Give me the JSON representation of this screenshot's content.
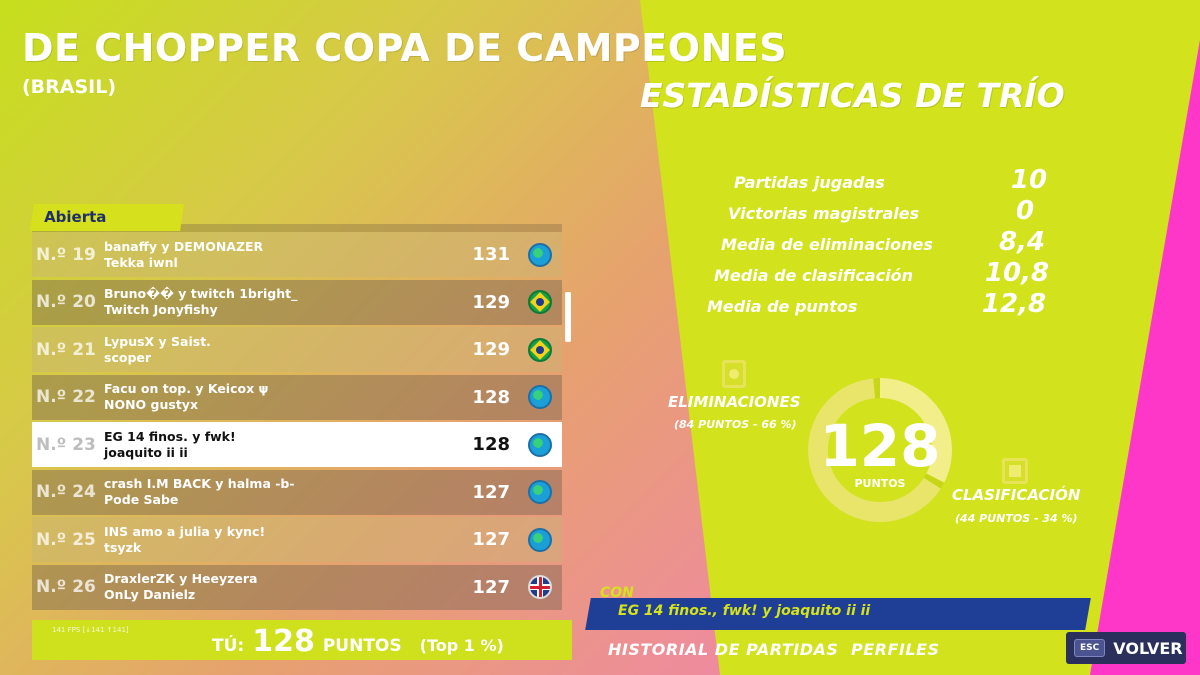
{
  "header": {
    "title": "DE CHOPPER COPA DE CAMPEONES",
    "subtitle": "(BRASIL)",
    "stats_title": "ESTADÍSTICAS DE TRÍO"
  },
  "leaderboard": {
    "tab_label": "Abierta",
    "rows": [
      {
        "rank": "N.º 19",
        "line1": "banaffy y DEMONAZER",
        "line2": "Tekka iwnl",
        "score": "131",
        "flag": "globe-icon"
      },
      {
        "rank": "N.º 20",
        "line1": "Bruno�� y twitch 1bright_",
        "line2": "Twitch Jonyfishy",
        "score": "129",
        "flag": "brazil-flag-icon"
      },
      {
        "rank": "N.º 21",
        "line1": "LypusX y Saist.",
        "line2": "scoper",
        "score": "129",
        "flag": "brazil-flag-icon"
      },
      {
        "rank": "N.º 22",
        "line1": "Facu on top. y Keicox ψ",
        "line2": "NONO gustyx",
        "score": "128",
        "flag": "globe-icon"
      },
      {
        "rank": "N.º 23",
        "line1": "EG 14 finos. y fwk!",
        "line2": "joaquito ii ii",
        "score": "128",
        "flag": "globe-icon",
        "selected": true
      },
      {
        "rank": "N.º 24",
        "line1": "crash I.M BACK y halma -b-",
        "line2": "Pode Sabe",
        "score": "127",
        "flag": "globe-icon"
      },
      {
        "rank": "N.º 25",
        "line1": "INS amo a julia y kync!",
        "line2": "tsyzk",
        "score": "127",
        "flag": "globe-icon"
      },
      {
        "rank": "N.º 26",
        "line1": "DraxlerZK y Heeyzera",
        "line2": "OnLy Danielz",
        "score": "127",
        "flag": "uk-flag-icon"
      }
    ],
    "fps": "141 FPS [↓141 ↑141]",
    "you": {
      "label": "TÚ:",
      "score": "128",
      "units": "PUNTOS",
      "top": "(Top 1 %)"
    }
  },
  "stats": {
    "items": [
      {
        "label": "Partidas jugadas",
        "value": "10"
      },
      {
        "label": "Victorias magistrales",
        "value": "0"
      },
      {
        "label": "Media de eliminaciones",
        "value": "8,4"
      },
      {
        "label": "Media de clasificación",
        "value": "10,8"
      },
      {
        "label": "Media de puntos",
        "value": "12,8"
      }
    ]
  },
  "donut": {
    "total": "128",
    "total_label": "PUNTOS",
    "elim_label": "ELIMINACIONES",
    "elim_sub": "(84 PUNTOS - 66 %)",
    "elim_fraction": 0.66,
    "clas_label": "CLASIFICACIÓN",
    "clas_sub": "(44 PUNTOS - 34 %)",
    "clas_fraction": 0.34,
    "colors": {
      "elim": "#e9e56a",
      "clas": "#f2ee8a",
      "ring_bg": "#c7d616"
    }
  },
  "team": {
    "con_label": "CON",
    "members_text": "EG 14 finos., fwk! y joaquito ii ii"
  },
  "nav": {
    "history": "HISTORIAL DE PARTIDAS",
    "profiles": "PERFILES",
    "esc_key": "ESC",
    "back": "VOLVER"
  },
  "colors": {
    "accent_yellow": "#d2e21c",
    "pink": "#ff37c8",
    "navy": "#1e3f95"
  }
}
